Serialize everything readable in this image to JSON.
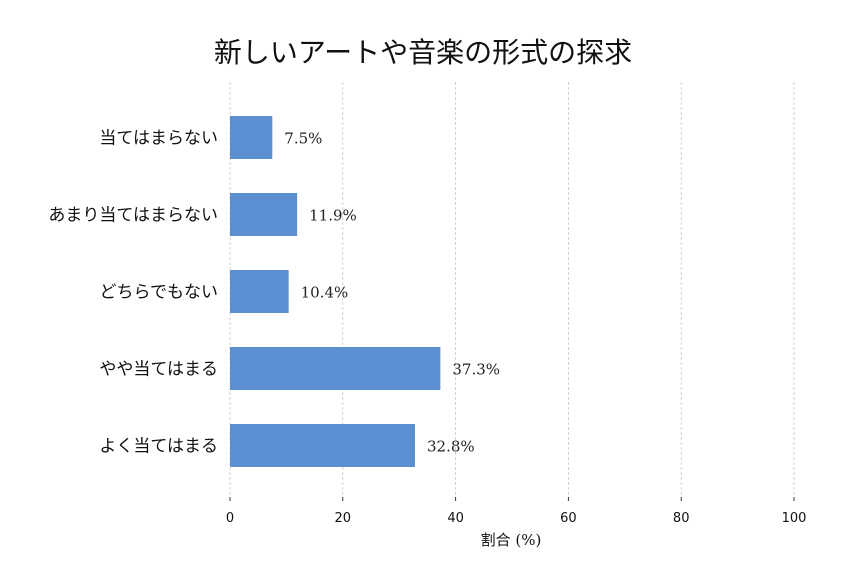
{
  "chart_data": {
    "type": "bar",
    "orientation": "horizontal",
    "title": "新しいアートや音楽の形式の探求",
    "xlabel": "割合 (%)",
    "ylabel": "",
    "xlim": [
      0,
      100
    ],
    "xticks": [
      "0",
      "20",
      "40",
      "60",
      "80",
      "100"
    ],
    "categories": [
      "当てはまらない",
      "あまり当てはまらない",
      "どちらでもない",
      "やや当てはまる",
      "よく当てはまる"
    ],
    "values": [
      7.5,
      11.9,
      10.4,
      37.3,
      32.8
    ],
    "data_labels": [
      "7.5%",
      "11.9%",
      "10.4%",
      "37.3%",
      "32.8%"
    ],
    "grid": "x-axis dashed",
    "legend": "none",
    "bar_color": "#5b8fd1"
  }
}
